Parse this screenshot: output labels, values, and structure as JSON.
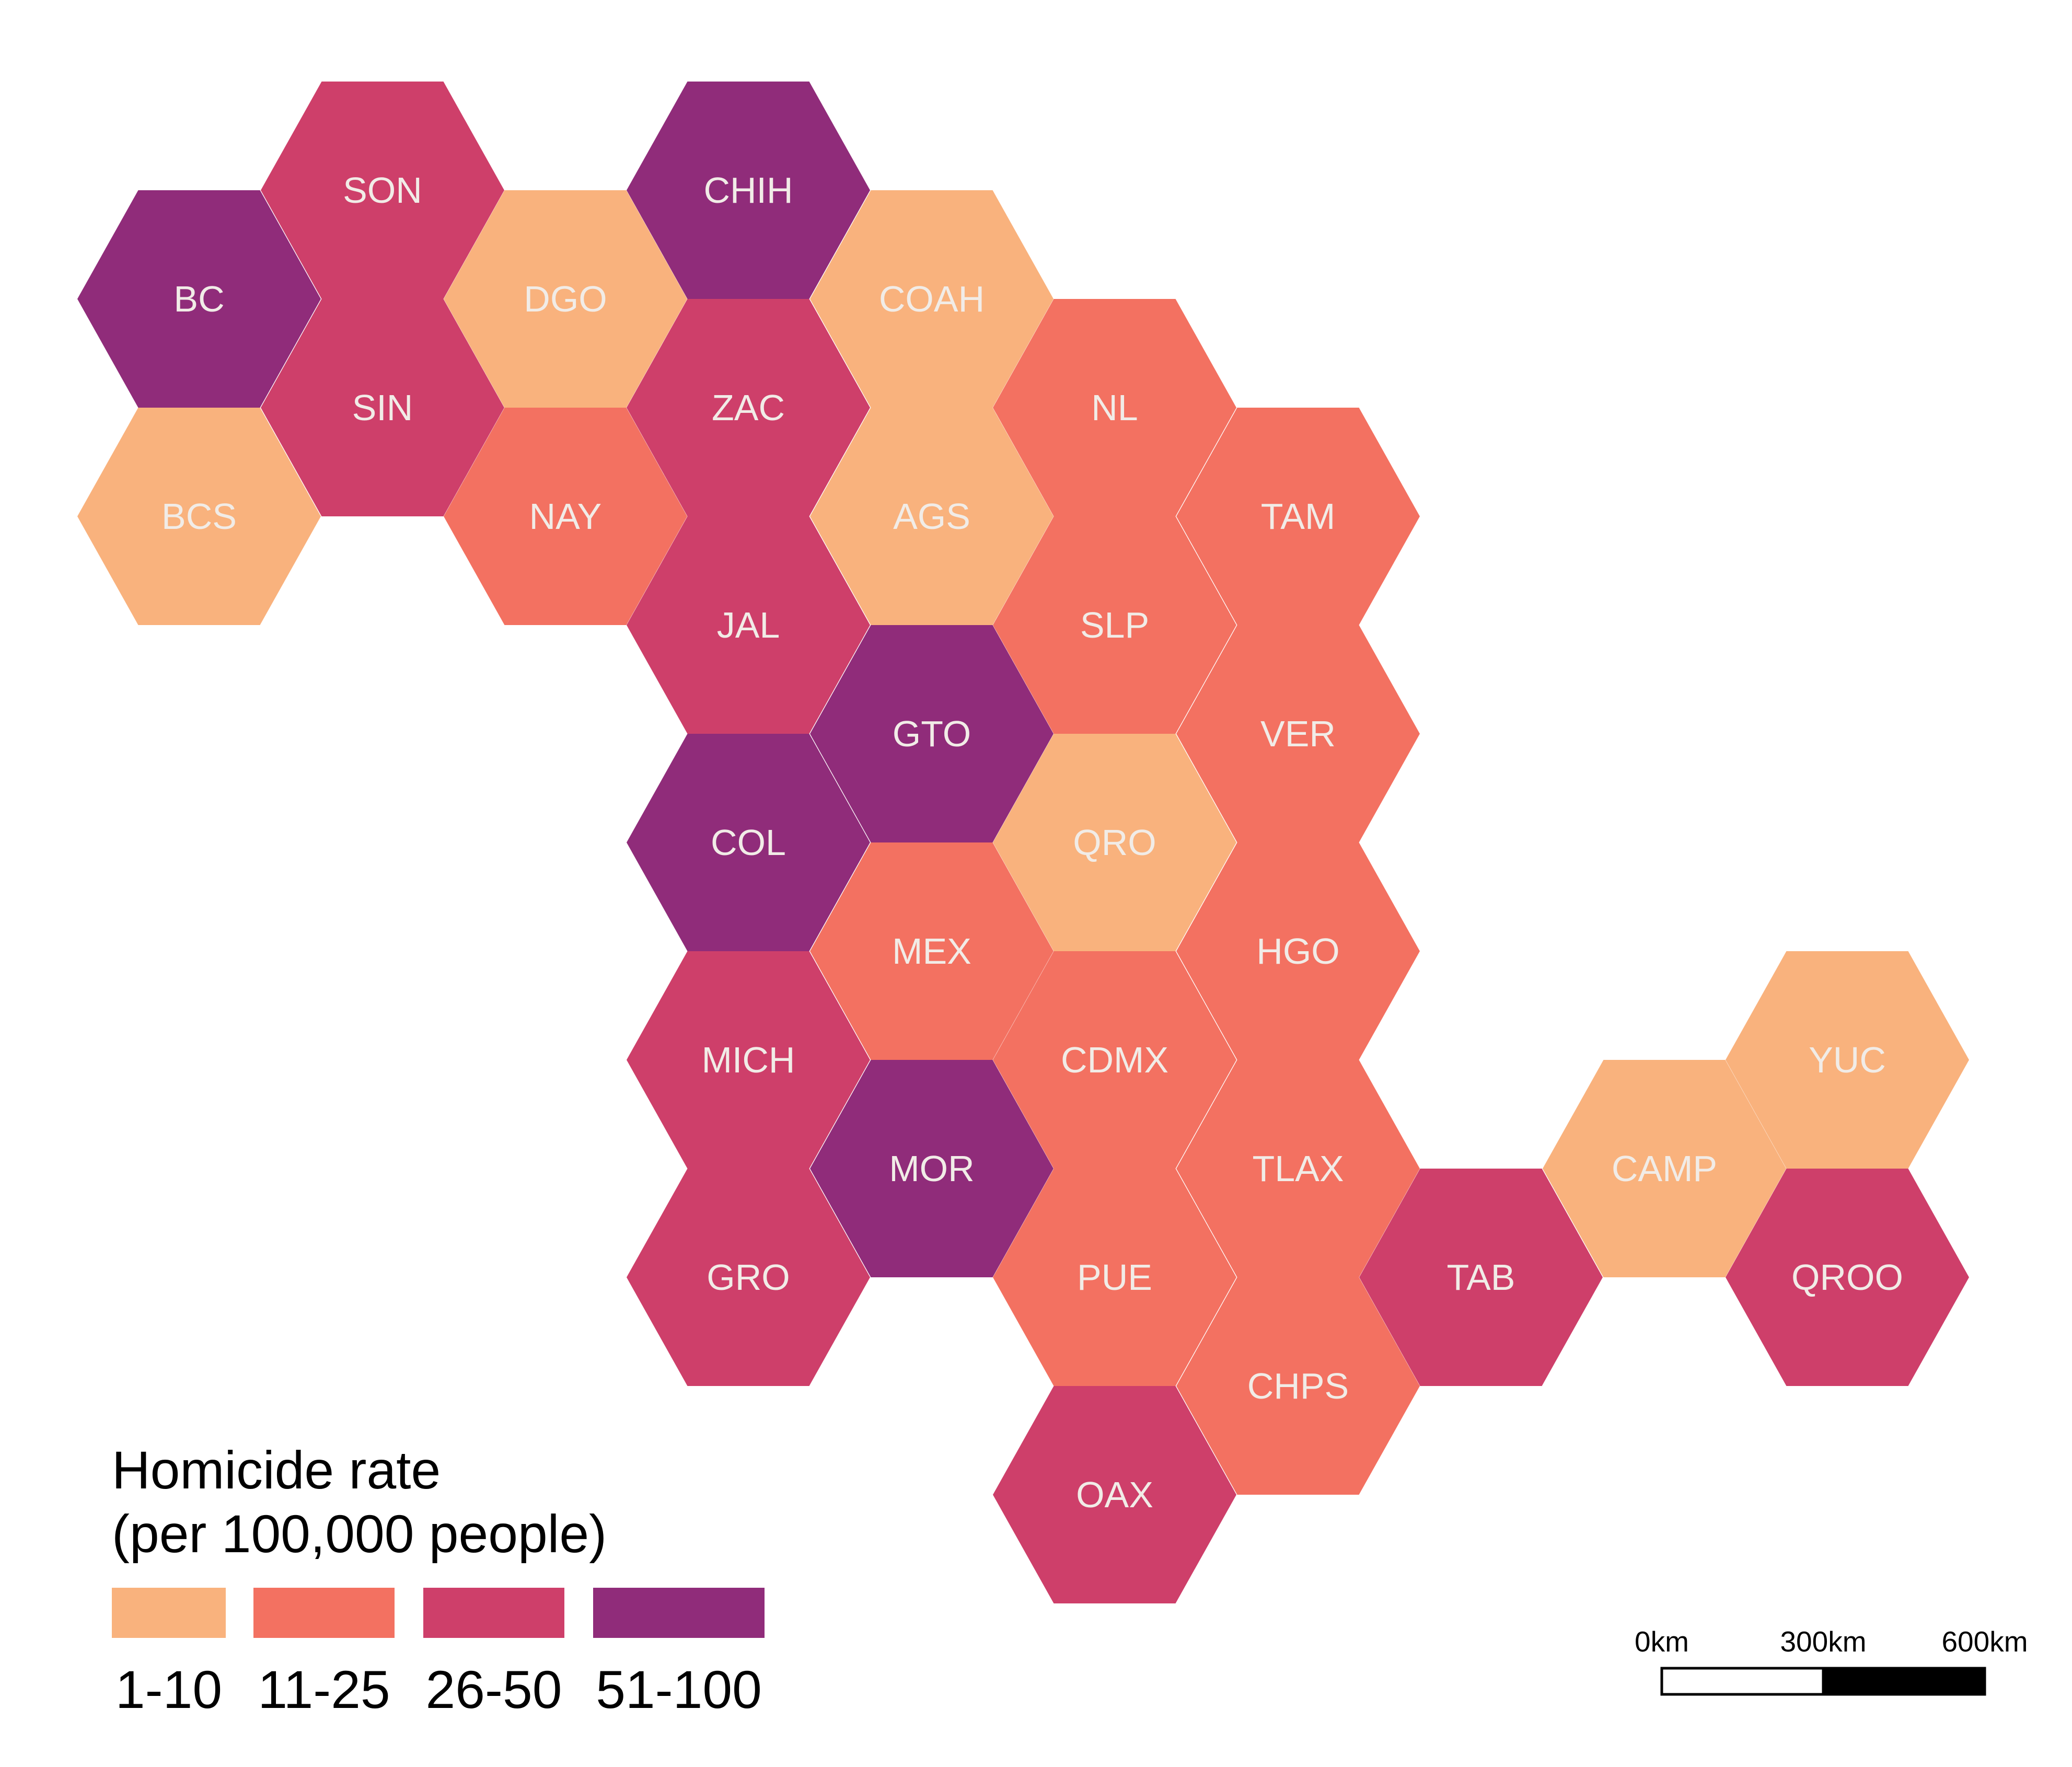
{
  "legend": {
    "title_line1": "Homicide rate",
    "title_line2": "(per 100,000 people)",
    "classes": [
      {
        "key": "c1",
        "label": "1-10",
        "color": "#F9B27D"
      },
      {
        "key": "c2",
        "label": "11-25",
        "color": "#F37161"
      },
      {
        "key": "c3",
        "label": "26-50",
        "color": "#CE3F6A"
      },
      {
        "key": "c4",
        "label": "51-100",
        "color": "#902C7A"
      }
    ]
  },
  "states": [
    {
      "abbr": "SON",
      "class": "c3"
    },
    {
      "abbr": "CHIH",
      "class": "c4"
    },
    {
      "abbr": "BC",
      "class": "c4"
    },
    {
      "abbr": "DGO",
      "class": "c1"
    },
    {
      "abbr": "COAH",
      "class": "c1"
    },
    {
      "abbr": "SIN",
      "class": "c3"
    },
    {
      "abbr": "ZAC",
      "class": "c3"
    },
    {
      "abbr": "NL",
      "class": "c2"
    },
    {
      "abbr": "BCS",
      "class": "c1"
    },
    {
      "abbr": "NAY",
      "class": "c2"
    },
    {
      "abbr": "AGS",
      "class": "c1"
    },
    {
      "abbr": "TAM",
      "class": "c2"
    },
    {
      "abbr": "JAL",
      "class": "c3"
    },
    {
      "abbr": "SLP",
      "class": "c2"
    },
    {
      "abbr": "GTO",
      "class": "c4"
    },
    {
      "abbr": "VER",
      "class": "c2"
    },
    {
      "abbr": "COL",
      "class": "c4"
    },
    {
      "abbr": "QRO",
      "class": "c1"
    },
    {
      "abbr": "MEX",
      "class": "c2"
    },
    {
      "abbr": "HGO",
      "class": "c2"
    },
    {
      "abbr": "YUC",
      "class": "c1"
    },
    {
      "abbr": "MICH",
      "class": "c3"
    },
    {
      "abbr": "CDMX",
      "class": "c2"
    },
    {
      "abbr": "MOR",
      "class": "c4"
    },
    {
      "abbr": "TLAX",
      "class": "c2"
    },
    {
      "abbr": "CAMP",
      "class": "c1"
    },
    {
      "abbr": "GRO",
      "class": "c3"
    },
    {
      "abbr": "PUE",
      "class": "c2"
    },
    {
      "abbr": "TAB",
      "class": "c3"
    },
    {
      "abbr": "QROO",
      "class": "c3"
    },
    {
      "abbr": "CHPS",
      "class": "c2"
    },
    {
      "abbr": "OAX",
      "class": "c3"
    }
  ],
  "scale_bar": {
    "labels": [
      "0km",
      "300km",
      "600km"
    ]
  }
}
